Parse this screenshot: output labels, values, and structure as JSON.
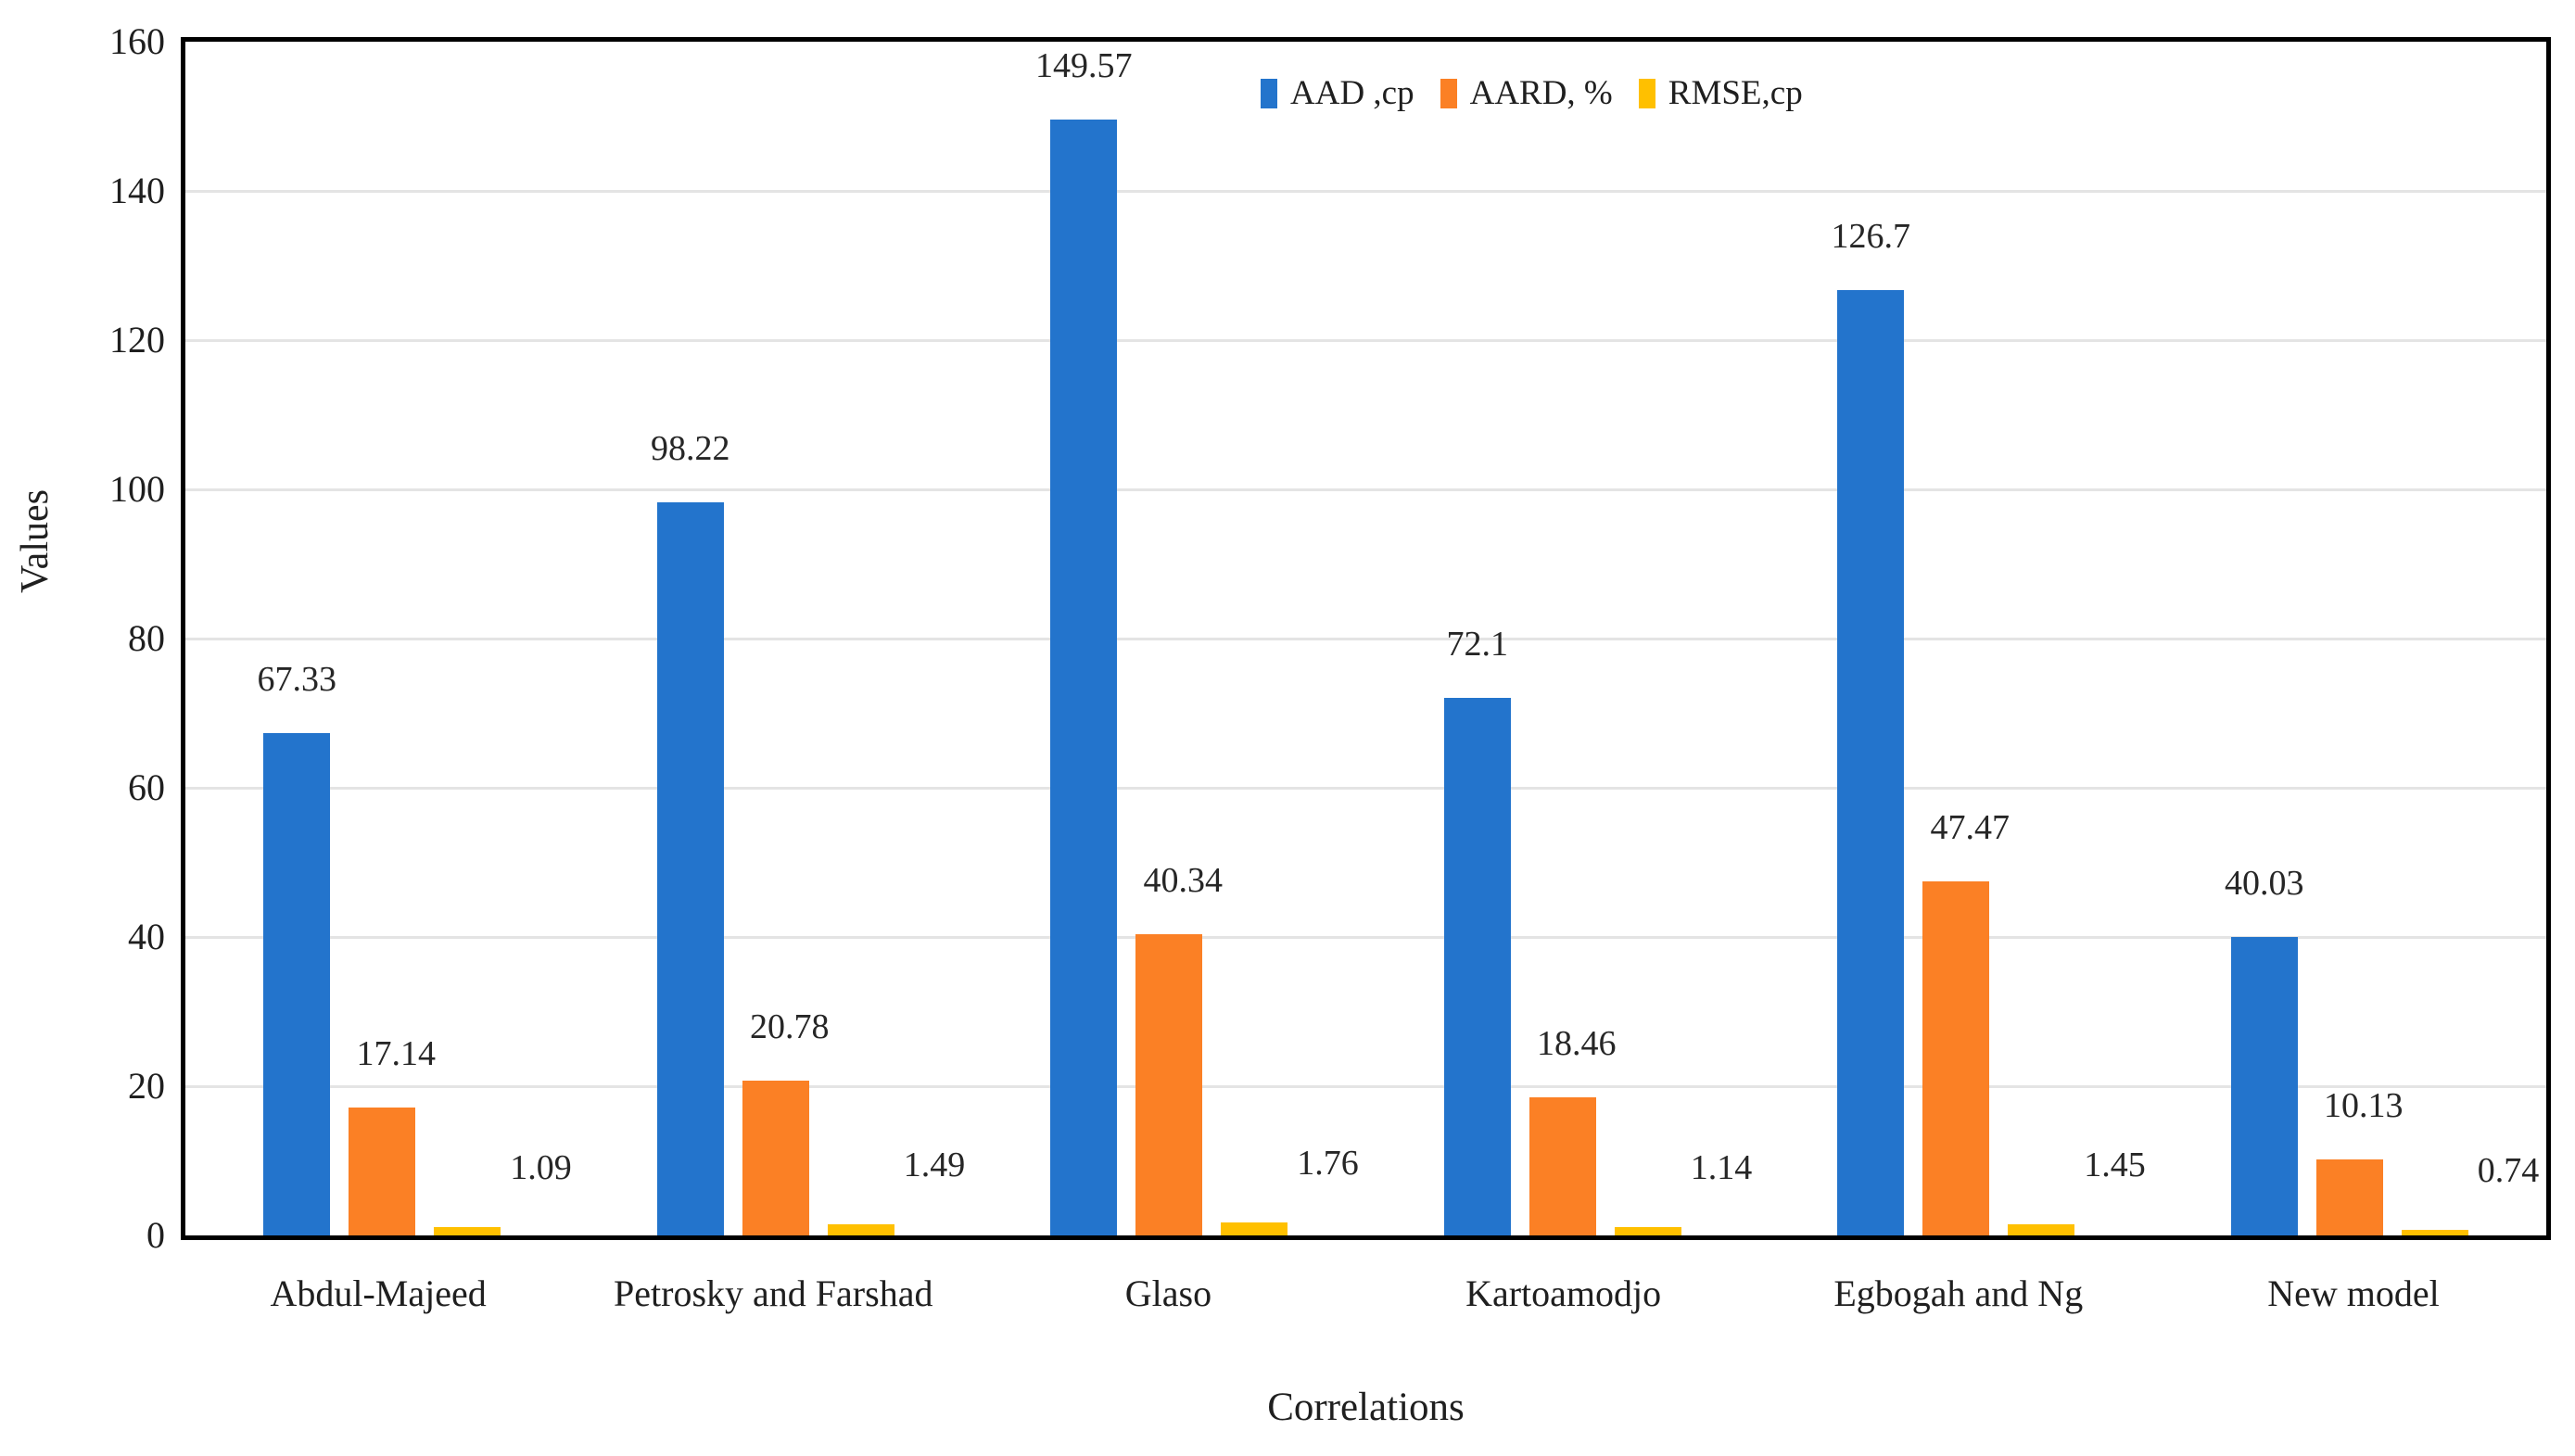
{
  "chart_data": {
    "type": "bar",
    "title": "",
    "xlabel": "Correlations",
    "ylabel": "Values",
    "ylim": [
      0,
      160
    ],
    "yticks": [
      0,
      20,
      40,
      60,
      80,
      100,
      120,
      140,
      160
    ],
    "grid": true,
    "legend_position": "top-center-inside-plot",
    "categories": [
      "Abdul-Majeed",
      "Petrosky and Farshad",
      "Glaso",
      "Kartoamodjo",
      "Egbogah and Ng",
      "New model"
    ],
    "series": [
      {
        "name": "AAD ,cp",
        "color": "#2374CC",
        "values": [
          67.33,
          98.22,
          149.57,
          72.1,
          126.7,
          40.03
        ]
      },
      {
        "name": "AARD, %",
        "color": "#FB8025",
        "values": [
          17.14,
          20.78,
          40.34,
          18.46,
          47.47,
          10.13
        ]
      },
      {
        "name": "RMSE,cp",
        "color": "#FFC000",
        "values": [
          1.09,
          1.49,
          1.76,
          1.14,
          1.45,
          0.74
        ]
      }
    ]
  },
  "colors": {
    "background": "#ffffff",
    "plot_border": "#000000",
    "gridline": "#e4e4e4",
    "text": "#1f1f1f"
  }
}
